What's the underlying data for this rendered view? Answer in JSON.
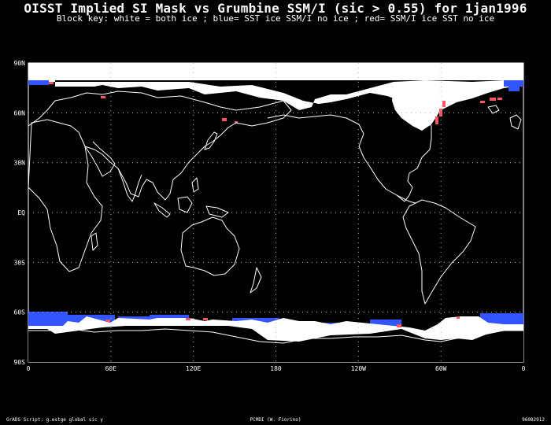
{
  "header": {
    "title": "OISST Implied SI Mask vs Grumbine SSM/I (sic > 0.55) for 1jan1996",
    "subtitle": "Block key: white = both ice ; blue= SST ice SSM/I no ice ; red= SSM/I ice SST no ice"
  },
  "map": {
    "lat_labels": [
      "90N",
      "60N",
      "30N",
      "EQ",
      "30S",
      "60S",
      "90S"
    ],
    "lon_labels": [
      "0",
      "60E",
      "120E",
      "180",
      "120W",
      "60W",
      "0"
    ],
    "colors": {
      "background": "#000000",
      "both_ice": "#ffffff",
      "sst_ice_only": "#3355ff",
      "ssmi_ice_only": "#ff5566",
      "coastline": "#ffffff",
      "grid": "#bbbbbb"
    }
  },
  "footer": {
    "left": "GrADS Script: g.estge global sic y",
    "center": "PCMDI (W. Fiorino)",
    "right": "96082912"
  }
}
